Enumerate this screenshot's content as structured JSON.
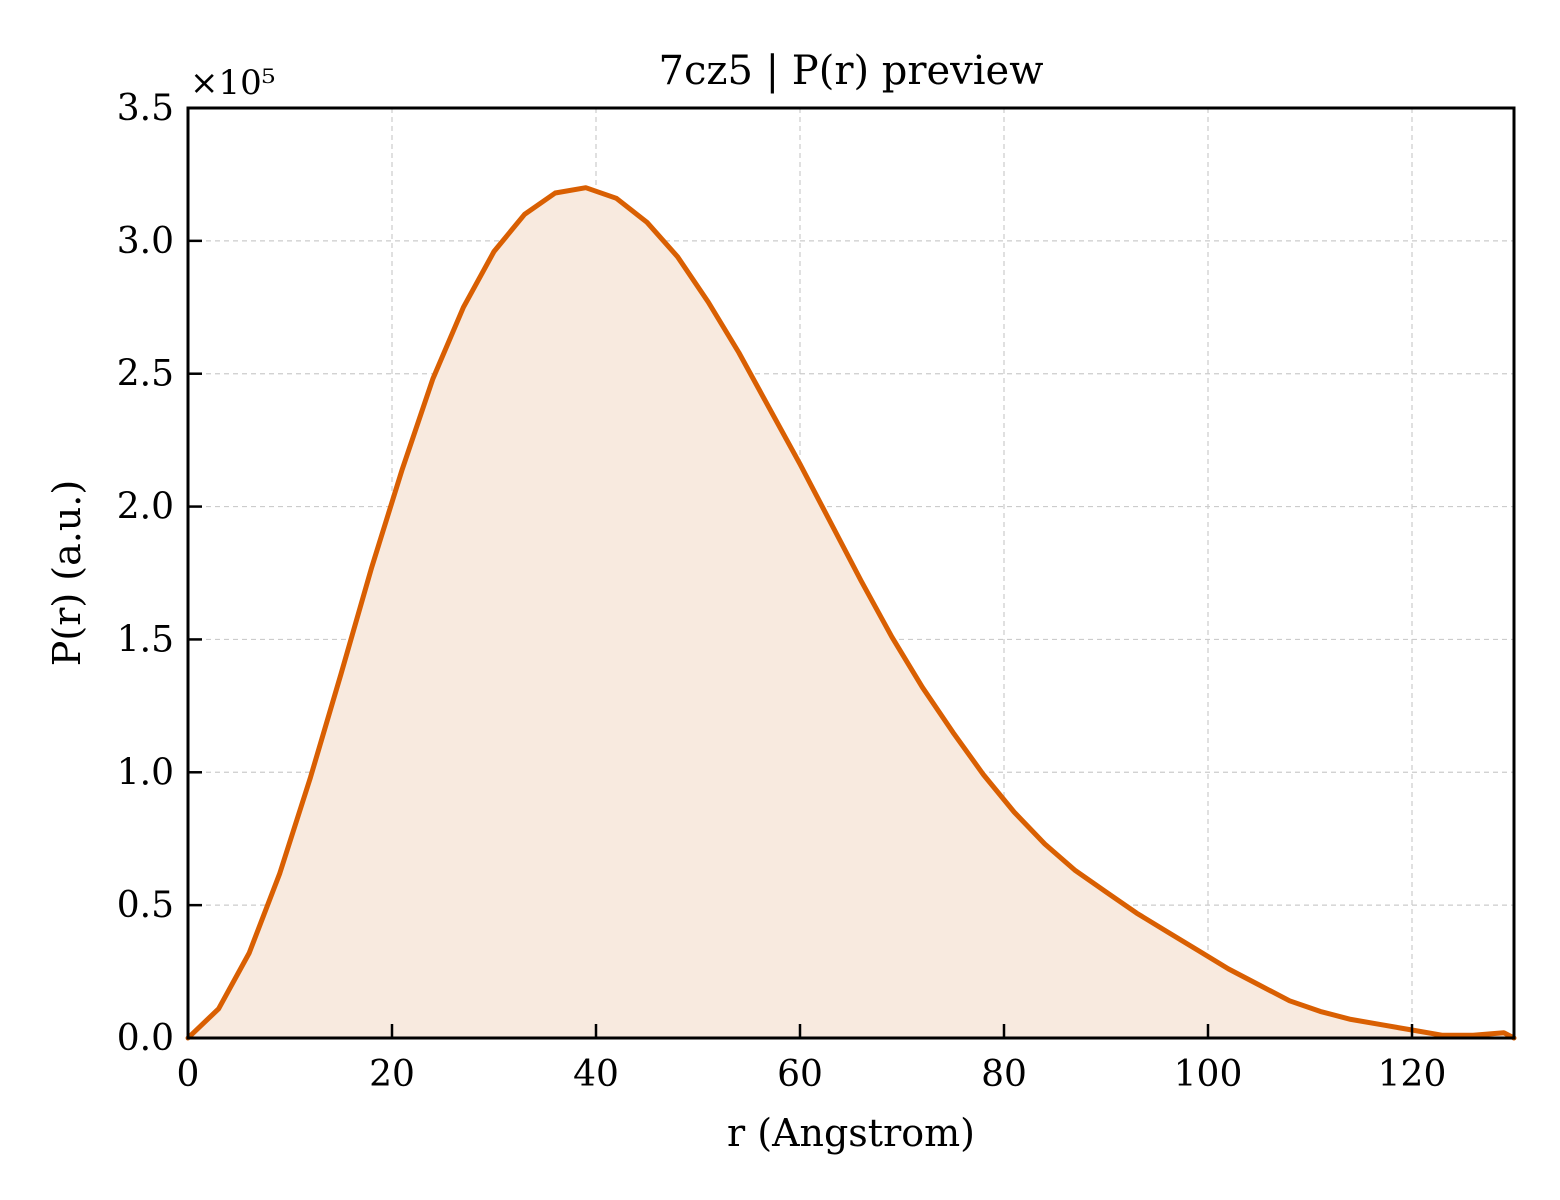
{
  "chart_data": {
    "type": "area",
    "title": "7cz5 | P(r) preview",
    "xlabel": "r (Angstrom)",
    "ylabel": "P(r) (a.u.)",
    "y_multiplier": "×10⁵",
    "xlim": [
      0,
      130
    ],
    "ylim": [
      0,
      3.5
    ],
    "xticks": [
      "0",
      "20",
      "40",
      "60",
      "80",
      "100",
      "120"
    ],
    "yticks": [
      "0.0",
      "0.5",
      "1.0",
      "1.5",
      "2.0",
      "2.5",
      "3.0",
      "3.5"
    ],
    "grid": true,
    "series": [
      {
        "color": "#d95f02",
        "fill_color": "#f8eadf",
        "x": [
          0,
          3,
          6,
          9,
          12,
          15,
          18,
          21,
          24,
          27,
          30,
          33,
          36,
          39,
          42,
          45,
          48,
          51,
          54,
          57,
          60,
          63,
          66,
          69,
          72,
          75,
          78,
          81,
          84,
          87,
          90,
          93,
          96,
          99,
          102,
          105,
          108,
          111,
          114,
          117,
          120,
          123,
          126,
          129,
          130
        ],
        "y": [
          0.0,
          0.11,
          0.32,
          0.62,
          0.98,
          1.37,
          1.77,
          2.14,
          2.48,
          2.75,
          2.96,
          3.1,
          3.18,
          3.2,
          3.16,
          3.07,
          2.94,
          2.77,
          2.58,
          2.37,
          2.16,
          1.94,
          1.72,
          1.51,
          1.32,
          1.15,
          0.99,
          0.85,
          0.73,
          0.63,
          0.55,
          0.47,
          0.4,
          0.33,
          0.26,
          0.2,
          0.14,
          0.1,
          0.07,
          0.05,
          0.03,
          0.01,
          0.01,
          0.02,
          0.0
        ]
      }
    ]
  }
}
